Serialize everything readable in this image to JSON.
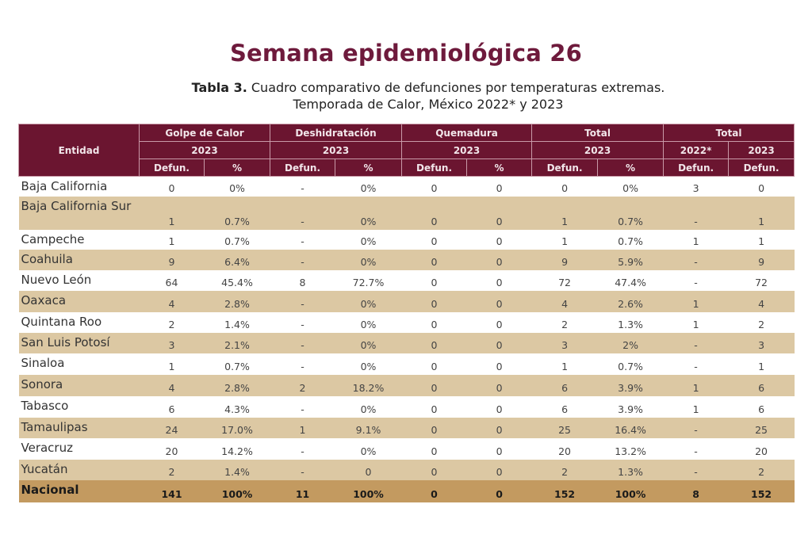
{
  "title": "Semana epidemiológica 26",
  "subtitle": {
    "label": "Tabla 3.",
    "line1": " Cuadro comparativo de defunciones por temperaturas extremas.",
    "line2": "Temporada de Calor, México 2022* y 2023"
  },
  "table": {
    "entity_header": "Entidad",
    "groups": [
      {
        "label": "Golpe de Calor",
        "year": "2023"
      },
      {
        "label": "Deshidratación",
        "year": "2023"
      },
      {
        "label": "Quemadura",
        "year": "2023"
      },
      {
        "label": "Total",
        "year": "2023"
      },
      {
        "label": "Total",
        "years": [
          "2022*",
          "2023"
        ]
      }
    ],
    "subheaders": [
      "Defun.",
      "%",
      "Defun.",
      "%",
      "Defun.",
      "%",
      "Defun.",
      "%",
      "Defun.",
      "Defun."
    ],
    "colors": {
      "header": "#6b1530",
      "alt_row": "#dcc8a3",
      "total_row": "#c39a60",
      "title": "#6e1a3c"
    },
    "rows": [
      {
        "entidad": "Baja California",
        "values": [
          "0",
          "0%",
          "-",
          "0%",
          "0",
          "0",
          "0",
          "0%",
          "3",
          "0"
        ]
      },
      {
        "entidad": "Baja California Sur",
        "values": [
          "1",
          "0.7%",
          "-",
          "0%",
          "0",
          "0",
          "1",
          "0.7%",
          "-",
          "1"
        ]
      },
      {
        "entidad": "Campeche",
        "values": [
          "1",
          "0.7%",
          "-",
          "0%",
          "0",
          "0",
          "1",
          "0.7%",
          "1",
          "1"
        ]
      },
      {
        "entidad": "Coahuila",
        "values": [
          "9",
          "6.4%",
          "-",
          "0%",
          "0",
          "0",
          "9",
          "5.9%",
          "-",
          "9"
        ]
      },
      {
        "entidad": "Nuevo León",
        "values": [
          "64",
          "45.4%",
          "8",
          "72.7%",
          "0",
          "0",
          "72",
          "47.4%",
          "-",
          "72"
        ]
      },
      {
        "entidad": "Oaxaca",
        "values": [
          "4",
          "2.8%",
          "-",
          "0%",
          "0",
          "0",
          "4",
          "2.6%",
          "1",
          "4"
        ]
      },
      {
        "entidad": "Quintana Roo",
        "values": [
          "2",
          "1.4%",
          "-",
          "0%",
          "0",
          "0",
          "2",
          "1.3%",
          "1",
          "2"
        ]
      },
      {
        "entidad": "San Luis Potosí",
        "values": [
          "3",
          "2.1%",
          "-",
          "0%",
          "0",
          "0",
          "3",
          "2%",
          "-",
          "3"
        ]
      },
      {
        "entidad": "Sinaloa",
        "values": [
          "1",
          "0.7%",
          "-",
          "0%",
          "0",
          "0",
          "1",
          "0.7%",
          "-",
          "1"
        ]
      },
      {
        "entidad": "Sonora",
        "values": [
          "4",
          "2.8%",
          "2",
          "18.2%",
          "0",
          "0",
          "6",
          "3.9%",
          "1",
          "6"
        ]
      },
      {
        "entidad": "Tabasco",
        "values": [
          "6",
          "4.3%",
          "-",
          "0%",
          "0",
          "0",
          "6",
          "3.9%",
          "1",
          "6"
        ]
      },
      {
        "entidad": "Tamaulipas",
        "values": [
          "24",
          "17.0%",
          "1",
          "9.1%",
          "0",
          "0",
          "25",
          "16.4%",
          "-",
          "25"
        ]
      },
      {
        "entidad": "Veracruz",
        "values": [
          "20",
          "14.2%",
          "-",
          "0%",
          "0",
          "0",
          "20",
          "13.2%",
          "-",
          "20"
        ]
      },
      {
        "entidad": "Yucatán",
        "values": [
          "2",
          "1.4%",
          "-",
          "0",
          "0",
          "0",
          "2",
          "1.3%",
          "-",
          "2"
        ]
      }
    ],
    "total": {
      "entidad": "Nacional",
      "values": [
        "141",
        "100%",
        "11",
        "100%",
        "0",
        "0",
        "152",
        "100%",
        "8",
        "152"
      ]
    }
  }
}
